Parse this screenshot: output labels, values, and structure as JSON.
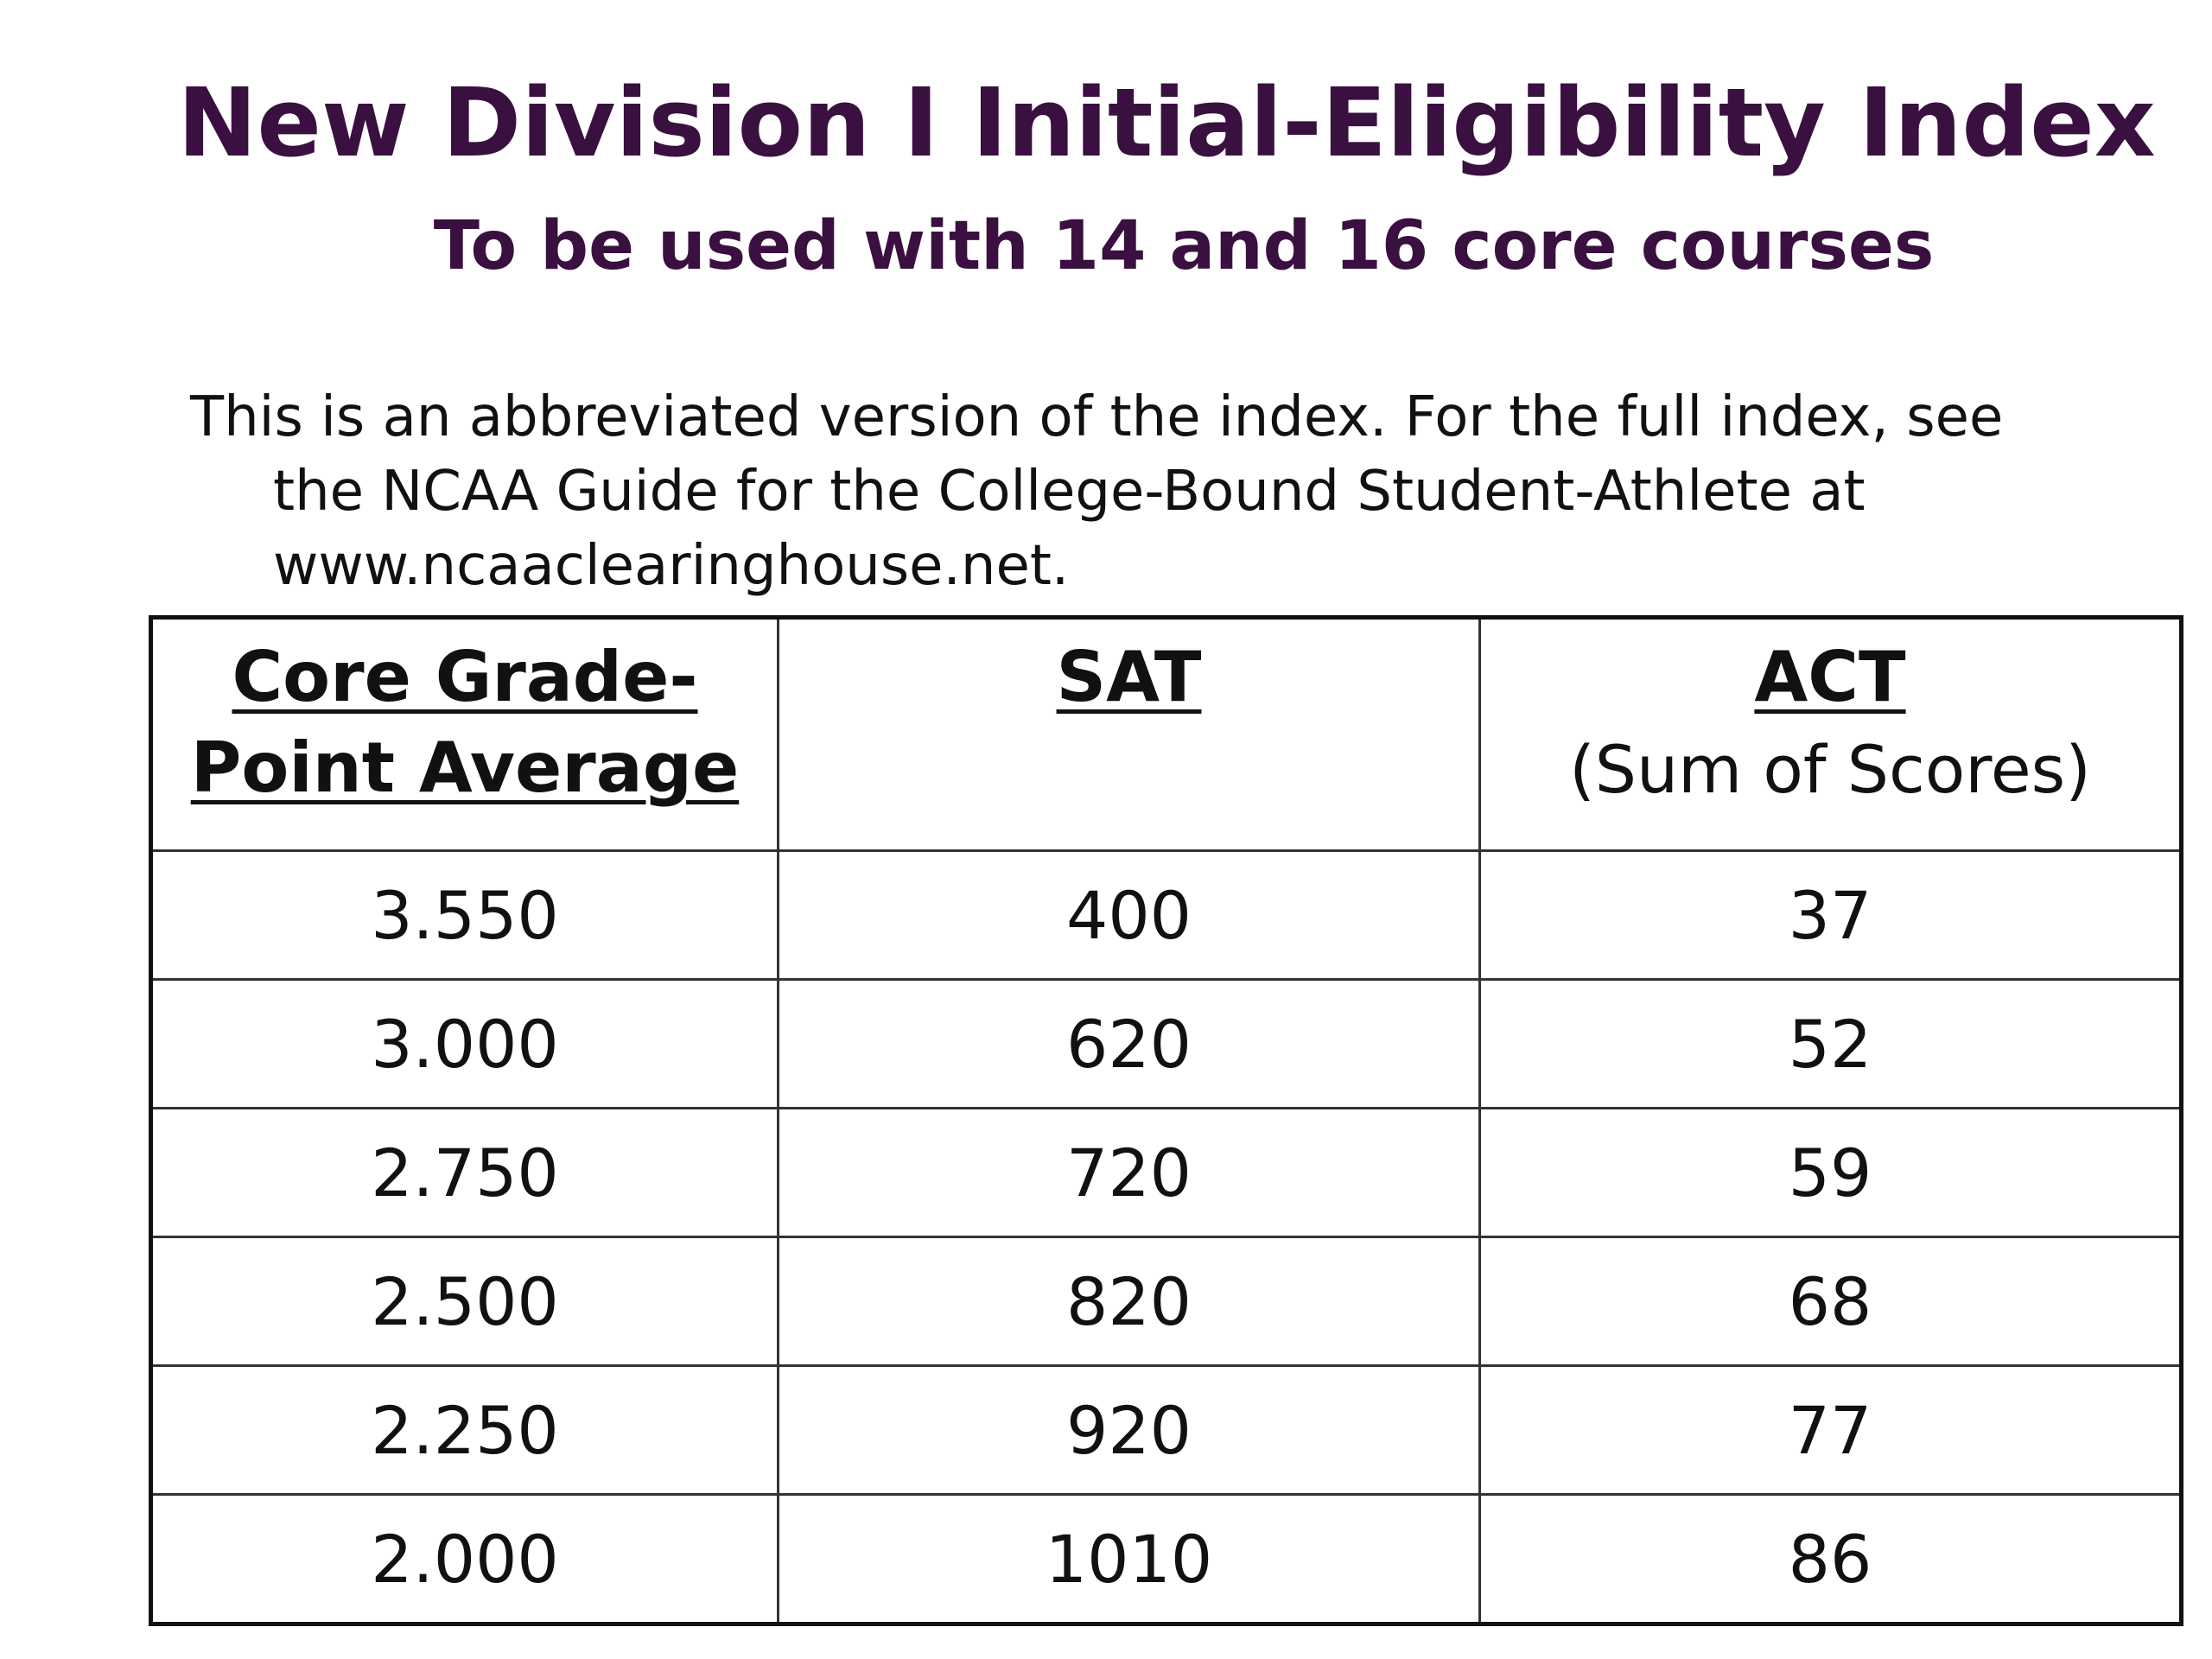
{
  "header": {
    "title": "New Division I Initial-Eligibility Index",
    "subtitle": "To be used with 14 and 16 core courses"
  },
  "intro": {
    "text": "This is an abbreviated version of the index.  For the full index, see\nthe NCAA Guide for the College-Bound Student-Athlete at\nwww.ncaaclearinghouse.net."
  },
  "table": {
    "columns": [
      {
        "label": "Core Grade-\nPoint Average",
        "sublabel": ""
      },
      {
        "label": "SAT",
        "sublabel": ""
      },
      {
        "label": "ACT",
        "sublabel": "(Sum of Scores)"
      }
    ],
    "rows": [
      [
        "3.550",
        "400",
        "37"
      ],
      [
        "3.000",
        "620",
        "52"
      ],
      [
        "2.750",
        "720",
        "59"
      ],
      [
        "2.500",
        "820",
        "68"
      ],
      [
        "2.250",
        "920",
        "77"
      ],
      [
        "2.000",
        "1010",
        "86"
      ]
    ]
  },
  "colors": {
    "title": "#3a1040",
    "text": "#111111",
    "background": "#ffffff"
  }
}
